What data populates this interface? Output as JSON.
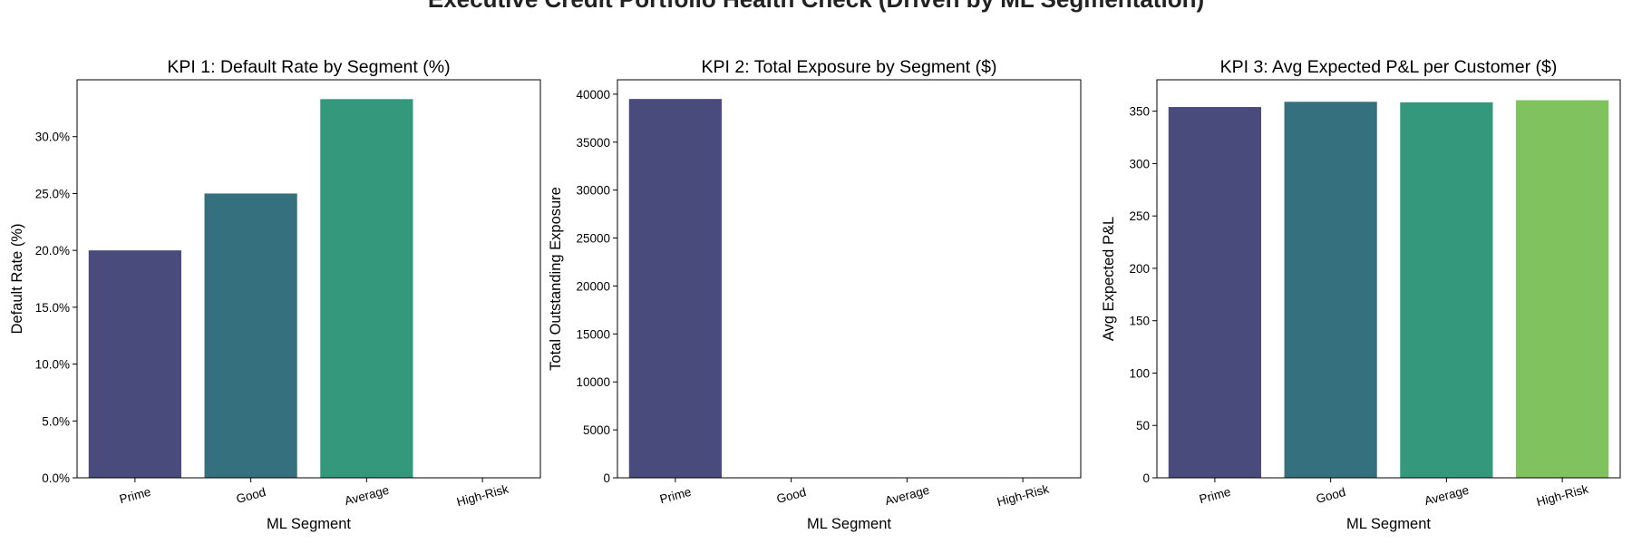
{
  "suptitle": "Executive Credit Portfolio Health Check (Driven by ML Segmentation)",
  "chart_data": [
    {
      "type": "bar",
      "title": "KPI 1: Default Rate by Segment (%)",
      "xlabel": "ML Segment",
      "ylabel": "Default Rate (%)",
      "categories": [
        "Prime",
        "Good",
        "Average",
        "High-Risk"
      ],
      "values": [
        20.0,
        25.0,
        33.3,
        0
      ],
      "ylim": [
        0,
        35
      ],
      "yticks": [
        0,
        5,
        10,
        15,
        20,
        25,
        30
      ],
      "ytick_labels": [
        "0.0%",
        "5.0%",
        "10.0%",
        "15.0%",
        "20.0%",
        "25.0%",
        "30.0%"
      ],
      "colors": [
        "#4a4b7d",
        "#35707f",
        "#33987c",
        "#7fc25e"
      ],
      "grid": false
    },
    {
      "type": "bar",
      "title": "KPI 2: Total Exposure by Segment ($)",
      "xlabel": "ML Segment",
      "ylabel": "Total Outstanding Exposure",
      "categories": [
        "Prime",
        "Good",
        "Average",
        "High-Risk"
      ],
      "values": [
        39500,
        0,
        0,
        0
      ],
      "ylim": [
        0,
        41500
      ],
      "yticks": [
        0,
        5000,
        10000,
        15000,
        20000,
        25000,
        30000,
        35000,
        40000
      ],
      "ytick_labels": [
        "0",
        "5000",
        "10000",
        "15000",
        "20000",
        "25000",
        "30000",
        "35000",
        "40000"
      ],
      "colors": [
        "#4a4b7d",
        "#35707f",
        "#33987c",
        "#7fc25e"
      ],
      "grid": false
    },
    {
      "type": "bar",
      "title": "KPI 3: Avg Expected P&L per Customer ($)",
      "xlabel": "ML Segment",
      "ylabel": "Avg Expected P&L",
      "categories": [
        "Prime",
        "Good",
        "Average",
        "High-Risk"
      ],
      "values": [
        354,
        359,
        358.5,
        360.5
      ],
      "ylim": [
        0,
        380
      ],
      "yticks": [
        0,
        50,
        100,
        150,
        200,
        250,
        300,
        350
      ],
      "ytick_labels": [
        "0",
        "50",
        "100",
        "150",
        "200",
        "250",
        "300",
        "350"
      ],
      "colors": [
        "#4a4b7d",
        "#35707f",
        "#33987c",
        "#7fc25e"
      ],
      "grid": false
    }
  ]
}
